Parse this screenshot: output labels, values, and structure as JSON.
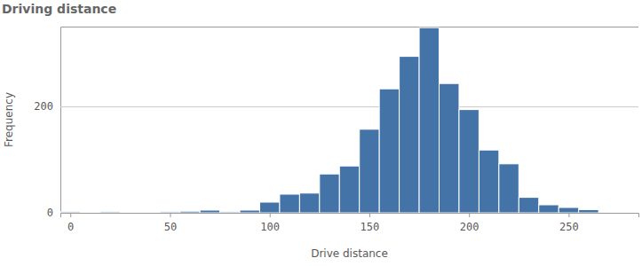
{
  "chart_data": {
    "type": "histogram",
    "title": "Driving distance",
    "x_label": "Drive distance",
    "y_label": "Frequency",
    "bins": [
      -5,
      5,
      15,
      25,
      35,
      45,
      55,
      65,
      75,
      85,
      95,
      105,
      115,
      125,
      135,
      145,
      155,
      165,
      175,
      185,
      195,
      205,
      215,
      225,
      235,
      245,
      255,
      265
    ],
    "values": [
      2,
      1,
      2,
      1,
      1,
      2,
      3,
      5,
      2,
      5,
      20,
      35,
      37,
      73,
      88,
      157,
      233,
      294,
      348,
      243,
      194,
      118,
      92,
      29,
      15,
      10,
      6
    ],
    "color": "#4473a8",
    "xlim": [
      -5,
      285
    ],
    "ylim": [
      0,
      350
    ],
    "xticks": [
      0,
      50,
      100,
      150,
      200,
      250
    ],
    "yticks": [
      0,
      200
    ],
    "grid": true
  }
}
